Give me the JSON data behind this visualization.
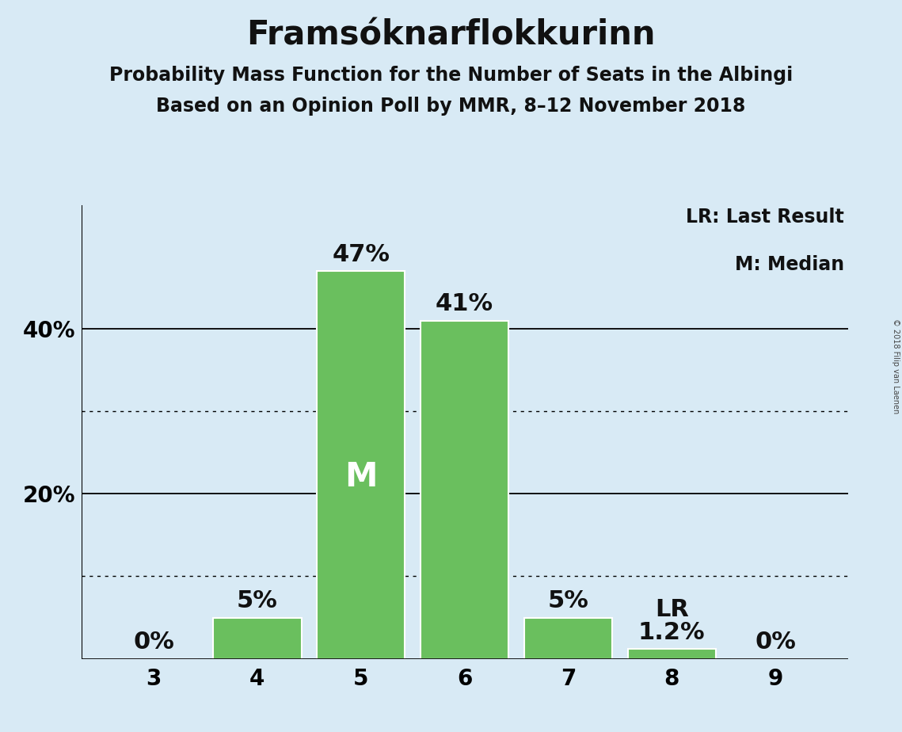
{
  "title": "Framsóknarflokkurinn",
  "subtitle1": "Probability Mass Function for the Number of Seats in the Albingi",
  "subtitle2": "Based on an Opinion Poll by MMR, 8–12 November 2018",
  "copyright": "© 2018 Filip van Laenen",
  "seats": [
    3,
    4,
    5,
    6,
    7,
    8,
    9
  ],
  "probabilities": [
    0.0,
    0.05,
    0.47,
    0.41,
    0.05,
    0.012,
    0.0
  ],
  "bar_color": "#6abf5e",
  "bar_edge_color": "#ffffff",
  "background_color": "#d8eaf5",
  "median_seat": 5,
  "last_result_seat": 8,
  "legend_lr": "LR: Last Result",
  "legend_m": "M: Median",
  "yticks": [
    0.0,
    0.1,
    0.2,
    0.3,
    0.4,
    0.5
  ],
  "ytick_labels": [
    "",
    "",
    "20%",
    "",
    "40%",
    ""
  ],
  "ylim": [
    0,
    0.55
  ],
  "solid_yticks": [
    0.2,
    0.4
  ],
  "dotted_yticks": [
    0.1,
    0.3
  ],
  "title_fontsize": 30,
  "subtitle_fontsize": 17,
  "axis_label_fontsize": 20,
  "bar_label_fontsize": 22,
  "legend_fontsize": 17,
  "median_label": "M",
  "lr_label": "LR"
}
